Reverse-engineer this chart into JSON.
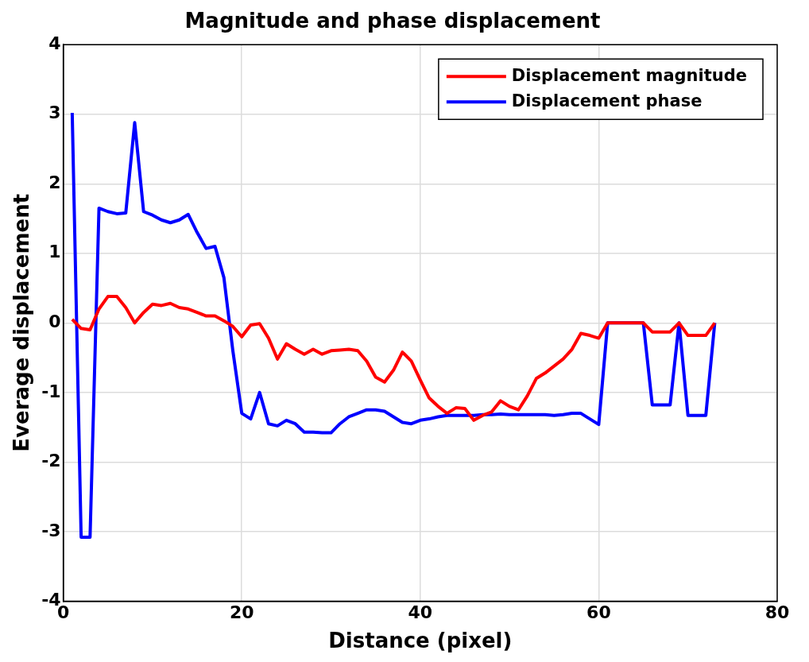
{
  "chart_data": {
    "type": "line",
    "title": "Magnitude and phase displacement",
    "xlabel": "Distance (pixel)",
    "ylabel": "Everage displacement",
    "x": [
      1,
      2,
      3,
      4,
      5,
      6,
      7,
      8,
      9,
      10,
      11,
      12,
      13,
      14,
      15,
      16,
      17,
      18,
      19,
      20,
      21,
      22,
      23,
      24,
      25,
      26,
      27,
      28,
      29,
      30,
      31,
      32,
      33,
      34,
      35,
      36,
      37,
      38,
      39,
      40,
      41,
      42,
      43,
      44,
      45,
      46,
      47,
      48,
      49,
      50,
      51,
      52,
      53,
      54,
      55,
      56,
      57,
      58,
      59,
      60,
      61,
      62,
      63,
      64,
      65,
      66,
      67,
      68,
      69,
      70,
      71,
      72,
      73
    ],
    "series": [
      {
        "name": "Displacement magnitude",
        "color": "#ff0000",
        "values": [
          0.05,
          -0.08,
          -0.1,
          0.2,
          0.38,
          0.38,
          0.22,
          0.0,
          0.15,
          0.27,
          0.25,
          0.28,
          0.22,
          0.2,
          0.15,
          0.1,
          0.1,
          0.03,
          -0.05,
          -0.2,
          -0.03,
          -0.01,
          -0.22,
          -0.52,
          -0.3,
          -0.38,
          -0.45,
          -0.38,
          -0.45,
          -0.4,
          -0.39,
          -0.38,
          -0.4,
          -0.55,
          -0.78,
          -0.85,
          -0.68,
          -0.42,
          -0.55,
          -0.82,
          -1.08,
          -1.2,
          -1.3,
          -1.22,
          -1.23,
          -1.4,
          -1.33,
          -1.28,
          -1.12,
          -1.2,
          -1.25,
          -1.05,
          -0.8,
          -0.72,
          -0.62,
          -0.52,
          -0.38,
          -0.15,
          -0.18,
          -0.22,
          0,
          0,
          0,
          0,
          0,
          -0.13,
          -0.13,
          -0.13,
          0,
          -0.18,
          -0.18,
          -0.18,
          0
        ]
      },
      {
        "name": "Displacement phase",
        "color": "#0000ff",
        "values": [
          3.02,
          -3.08,
          -3.08,
          1.65,
          1.6,
          1.57,
          1.58,
          2.88,
          1.6,
          1.55,
          1.48,
          1.44,
          1.48,
          1.56,
          1.3,
          1.07,
          1.1,
          0.65,
          -0.4,
          -1.3,
          -1.38,
          -1.0,
          -1.45,
          -1.48,
          -1.4,
          -1.45,
          -1.57,
          -1.57,
          -1.58,
          -1.58,
          -1.45,
          -1.35,
          -1.3,
          -1.25,
          -1.25,
          -1.27,
          -1.35,
          -1.43,
          -1.45,
          -1.4,
          -1.38,
          -1.35,
          -1.33,
          -1.33,
          -1.33,
          -1.33,
          -1.32,
          -1.32,
          -1.31,
          -1.32,
          -1.32,
          -1.32,
          -1.32,
          -1.32,
          -1.33,
          -1.32,
          -1.3,
          -1.3,
          -1.38,
          -1.46,
          0,
          0,
          0,
          0,
          0,
          -1.18,
          -1.18,
          -1.18,
          0,
          -1.33,
          -1.33,
          -1.33,
          0
        ]
      }
    ],
    "xlim": [
      0,
      80
    ],
    "xticks": [
      0,
      20,
      40,
      60,
      80
    ],
    "ylim": [
      -4,
      4
    ],
    "yticks": [
      -4,
      -3,
      -2,
      -1,
      0,
      1,
      2,
      3,
      4
    ],
    "grid": true,
    "legend": "top right",
    "marker": "none",
    "line_style": "solid"
  }
}
